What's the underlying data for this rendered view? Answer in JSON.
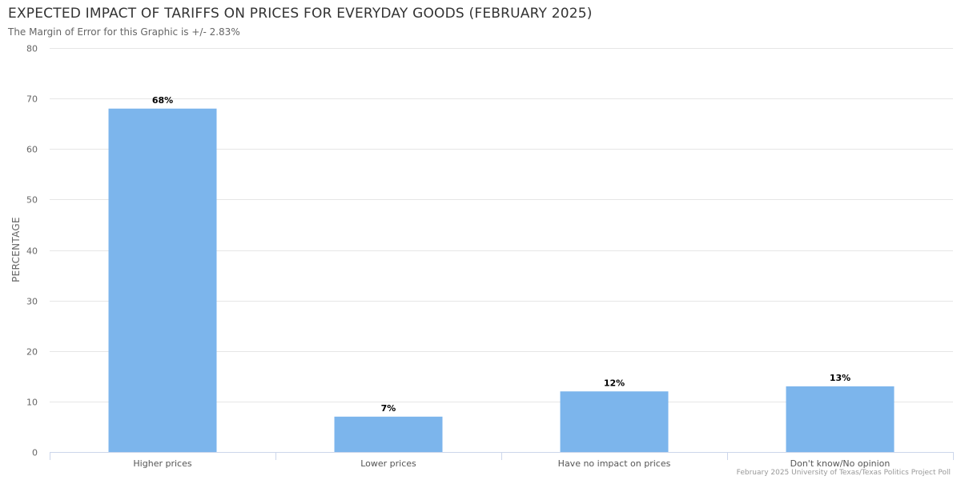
{
  "chart_data": {
    "type": "bar",
    "title": "EXPECTED IMPACT OF TARIFFS ON PRICES FOR EVERYDAY GOODS (FEBRUARY 2025)",
    "subtitle": "The Margin of Error for this Graphic is +/- 2.83%",
    "categories": [
      "Higher prices",
      "Lower prices",
      "Have no impact on prices",
      "Don't know/No opinion"
    ],
    "values": [
      68,
      7,
      12,
      13
    ],
    "data_labels": [
      "68%",
      "7%",
      "12%",
      "13%"
    ],
    "xlabel": "",
    "ylabel": "PERCENTAGE",
    "ylim": [
      0,
      80
    ],
    "yticks": [
      0,
      10,
      20,
      30,
      40,
      50,
      60,
      70,
      80
    ],
    "grid": true,
    "legend": "none",
    "bar_color": "#7cb5ec",
    "credits": "February 2025 University of Texas/Texas Politics Project Poll"
  }
}
